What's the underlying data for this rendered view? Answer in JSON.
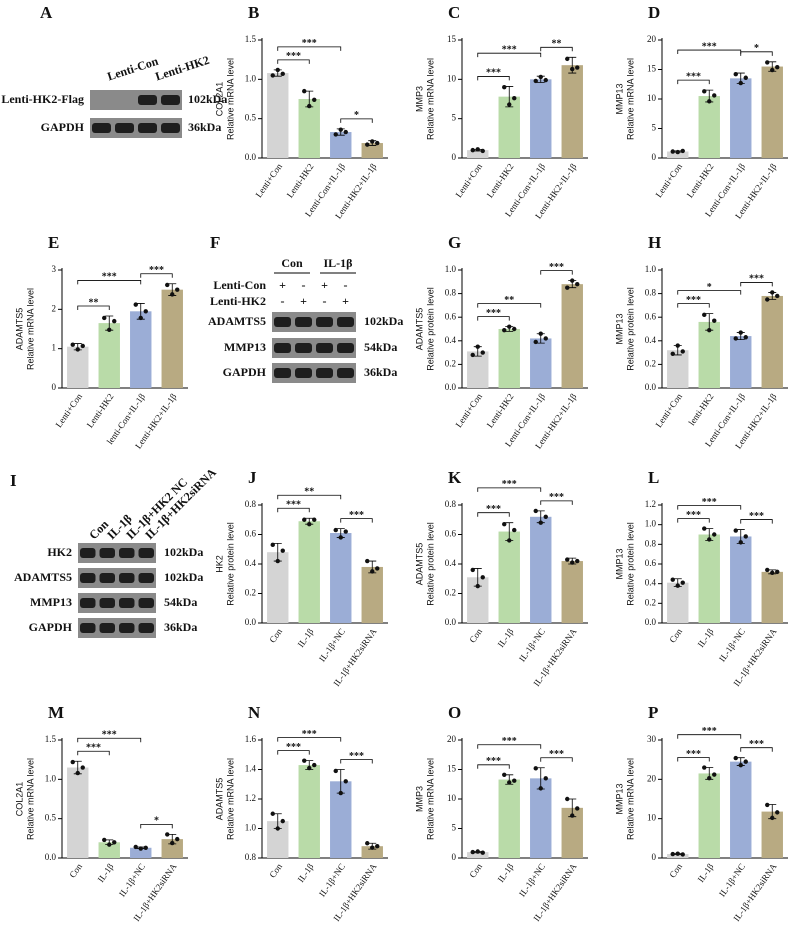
{
  "chart_data": [
    {
      "type": "bar",
      "panel": "B",
      "ylabel": [
        "COL2A1",
        "Relative mRNA level"
      ],
      "categories": [
        "Lenti+Con",
        "Lenti-HK2",
        "Lenti-Con+IL-1β",
        "Lenti-HK2+IL-1β"
      ],
      "colors": [
        "#d4d4d4",
        "#b9dba8",
        "#9badd6",
        "#b8aa82"
      ],
      "values": [
        1.08,
        0.75,
        0.33,
        0.19
      ],
      "errors": [
        0.04,
        0.1,
        0.04,
        0.03
      ],
      "points": [
        [
          1.05,
          1.12,
          1.07
        ],
        [
          0.85,
          0.66,
          0.74
        ],
        [
          0.3,
          0.36,
          0.33
        ],
        [
          0.17,
          0.21,
          0.19
        ]
      ],
      "ylim": [
        0,
        1.5
      ],
      "yticks": [
        {
          "value": 0,
          "label": "0.0"
        },
        0.5,
        {
          "value": 1,
          "label": "1.0"
        },
        1.5
      ],
      "brackets": [
        {
          "from": 0,
          "to": 1,
          "label": "***"
        },
        {
          "from": 0,
          "to": 2,
          "label": "***"
        },
        {
          "from": 2,
          "to": 3,
          "label": "*"
        }
      ]
    },
    {
      "type": "bar",
      "panel": "C",
      "ylabel": [
        "MMP3",
        "Relative mRNA level"
      ],
      "categories": [
        "Lenti+Con",
        "Lenti-HK2",
        "Lenti-Con+IL-1β",
        "Lenti-HK2+IL-1β"
      ],
      "colors": [
        "#d4d4d4",
        "#b9dba8",
        "#9badd6",
        "#b8aa82"
      ],
      "values": [
        1.0,
        7.8,
        10.0,
        11.8
      ],
      "errors": [
        0.1,
        1.3,
        0.4,
        1.0
      ],
      "points": [
        [
          1.0,
          1.1,
          0.9
        ],
        [
          9.0,
          6.8,
          7.6
        ],
        [
          9.8,
          10.3,
          9.9
        ],
        [
          12.6,
          11.3,
          11.5
        ]
      ],
      "ylim": [
        0,
        15
      ],
      "yticks": [
        0,
        5,
        10,
        15
      ],
      "brackets": [
        {
          "from": 0,
          "to": 1,
          "label": "***"
        },
        {
          "from": 0,
          "to": 2,
          "label": "***"
        },
        {
          "from": 2,
          "to": 3,
          "label": "**"
        }
      ]
    },
    {
      "type": "bar",
      "panel": "D",
      "ylabel": [
        "MMP13",
        "Relative mRNA level"
      ],
      "categories": [
        "Lenti+Con",
        "Lenti-HK2",
        "Lenti-Con+IL-1β",
        "Lenti-HK2+IL-1β"
      ],
      "colors": [
        "#d4d4d4",
        "#b9dba8",
        "#9badd6",
        "#b8aa82"
      ],
      "values": [
        1.1,
        10.5,
        13.5,
        15.5
      ],
      "errors": [
        0.1,
        1.0,
        0.9,
        0.8
      ],
      "points": [
        [
          1.1,
          1.0,
          1.2
        ],
        [
          11.3,
          9.6,
          10.6
        ],
        [
          14.2,
          12.7,
          13.6
        ],
        [
          16.2,
          14.9,
          15.4
        ]
      ],
      "ylim": [
        0,
        20
      ],
      "yticks": [
        0,
        5,
        10,
        15,
        20
      ],
      "brackets": [
        {
          "from": 0,
          "to": 1,
          "label": "***"
        },
        {
          "from": 0,
          "to": 2,
          "label": "***"
        },
        {
          "from": 2,
          "to": 3,
          "label": "*"
        }
      ]
    },
    {
      "type": "bar",
      "panel": "E",
      "ylabel": [
        "ADAMTS5",
        "Relative mRNA level"
      ],
      "categories": [
        "Lenti+Con",
        "Lenti-HK2",
        "lenti-Con+IL-1β",
        "Lenti-HK2+IL-1β"
      ],
      "colors": [
        "#d4d4d4",
        "#b9dba8",
        "#9badd6",
        "#b8aa82"
      ],
      "values": [
        1.05,
        1.65,
        1.95,
        2.5
      ],
      "errors": [
        0.08,
        0.18,
        0.2,
        0.15
      ],
      "points": [
        [
          1.1,
          0.98,
          1.07
        ],
        [
          1.78,
          1.48,
          1.7
        ],
        [
          2.12,
          1.78,
          1.95
        ],
        [
          2.62,
          2.38,
          2.5
        ]
      ],
      "ylim": [
        0,
        3
      ],
      "yticks": [
        0,
        1,
        2,
        3
      ],
      "brackets": [
        {
          "from": 0,
          "to": 1,
          "label": "**"
        },
        {
          "from": 0,
          "to": 2,
          "label": "***"
        },
        {
          "from": 2,
          "to": 3,
          "label": "***"
        }
      ]
    },
    {
      "type": "bar",
      "panel": "G",
      "ylabel": [
        "ADAMTS5",
        "Relative protein level"
      ],
      "categories": [
        "Lenti+Con",
        "Lenti-HK2",
        "Lenti-Con+IL-1β",
        "Lenti-HK2+IL-1β"
      ],
      "colors": [
        "#d4d4d4",
        "#b9dba8",
        "#9badd6",
        "#b8aa82"
      ],
      "values": [
        0.31,
        0.5,
        0.42,
        0.88
      ],
      "errors": [
        0.04,
        0.02,
        0.04,
        0.03
      ],
      "points": [
        [
          0.28,
          0.35,
          0.3
        ],
        [
          0.49,
          0.52,
          0.5
        ],
        [
          0.39,
          0.46,
          0.42
        ],
        [
          0.85,
          0.91,
          0.88
        ]
      ],
      "ylim": [
        0,
        1
      ],
      "yticks": [
        {
          "value": 0,
          "label": "0.0"
        },
        0.2,
        0.4,
        0.6,
        0.8,
        {
          "value": 1,
          "label": "1.0"
        }
      ],
      "brackets": [
        {
          "from": 0,
          "to": 1,
          "label": "***"
        },
        {
          "from": 0,
          "to": 2,
          "label": "**"
        },
        {
          "from": 2,
          "to": 3,
          "label": "***"
        }
      ]
    },
    {
      "type": "bar",
      "panel": "H",
      "ylabel": [
        "MMP13",
        "Relative protein level"
      ],
      "categories": [
        "Lenti+Con",
        "lenti-HK2",
        "Lenti-Con+IL-1β",
        "Lenti-HK2+IL-1β"
      ],
      "colors": [
        "#d4d4d4",
        "#b9dba8",
        "#9badd6",
        "#b8aa82"
      ],
      "values": [
        0.32,
        0.56,
        0.44,
        0.78
      ],
      "errors": [
        0.04,
        0.07,
        0.03,
        0.03
      ],
      "points": [
        [
          0.29,
          0.36,
          0.31
        ],
        [
          0.62,
          0.49,
          0.57
        ],
        [
          0.42,
          0.47,
          0.43
        ],
        [
          0.75,
          0.81,
          0.78
        ]
      ],
      "ylim": [
        0,
        1
      ],
      "yticks": [
        {
          "value": 0,
          "label": "0.0"
        },
        0.2,
        0.4,
        0.6,
        0.8,
        {
          "value": 1,
          "label": "1.0"
        }
      ],
      "brackets": [
        {
          "from": 0,
          "to": 1,
          "label": "***"
        },
        {
          "from": 0,
          "to": 2,
          "label": "*"
        },
        {
          "from": 2,
          "to": 3,
          "label": "***"
        }
      ]
    },
    {
      "type": "bar",
      "panel": "J",
      "ylabel": [
        "HK2",
        "Relative protein level"
      ],
      "categories": [
        "Con",
        "IL-1β",
        "IL-1β+NC",
        "IL-1β+HK2siRNA"
      ],
      "colors": [
        "#d4d4d4",
        "#b9dba8",
        "#9badd6",
        "#b8aa82"
      ],
      "values": [
        0.48,
        0.69,
        0.61,
        0.38
      ],
      "errors": [
        0.06,
        0.02,
        0.03,
        0.04
      ],
      "points": [
        [
          0.53,
          0.42,
          0.49
        ],
        [
          0.7,
          0.67,
          0.7
        ],
        [
          0.63,
          0.58,
          0.62
        ],
        [
          0.42,
          0.35,
          0.37
        ]
      ],
      "ylim": [
        0,
        0.8
      ],
      "yticks": [
        {
          "value": 0,
          "label": "0.0"
        },
        0.2,
        0.4,
        0.6,
        0.8
      ],
      "brackets": [
        {
          "from": 0,
          "to": 1,
          "label": "***"
        },
        {
          "from": 0,
          "to": 2,
          "label": "**"
        },
        {
          "from": 2,
          "to": 3,
          "label": "***"
        }
      ]
    },
    {
      "type": "bar",
      "panel": "K",
      "ylabel": [
        "ADAMTS5",
        "Relative protein level"
      ],
      "categories": [
        "Con",
        "IL-1β",
        "IL-1β+NC",
        "IL-1β+HK2siRNA"
      ],
      "colors": [
        "#d4d4d4",
        "#b9dba8",
        "#9badd6",
        "#b8aa82"
      ],
      "values": [
        0.31,
        0.62,
        0.72,
        0.42
      ],
      "errors": [
        0.06,
        0.06,
        0.04,
        0.02
      ],
      "points": [
        [
          0.36,
          0.25,
          0.31
        ],
        [
          0.67,
          0.56,
          0.63
        ],
        [
          0.76,
          0.68,
          0.72
        ],
        [
          0.43,
          0.41,
          0.42
        ]
      ],
      "ylim": [
        0,
        0.8
      ],
      "yticks": [
        {
          "value": 0,
          "label": "0.0"
        },
        0.2,
        0.4,
        0.6,
        0.8
      ],
      "brackets": [
        {
          "from": 0,
          "to": 1,
          "label": "***"
        },
        {
          "from": 0,
          "to": 2,
          "label": "***"
        },
        {
          "from": 2,
          "to": 3,
          "label": "***"
        }
      ]
    },
    {
      "type": "bar",
      "panel": "L",
      "ylabel": [
        "MMP13",
        "Relative protein level"
      ],
      "categories": [
        "Con",
        "IL-1β",
        "IL-1β+NC",
        "IL-1β+HK2siRNA"
      ],
      "colors": [
        "#d4d4d4",
        "#b9dba8",
        "#9badd6",
        "#b8aa82"
      ],
      "values": [
        0.41,
        0.9,
        0.88,
        0.52
      ],
      "errors": [
        0.04,
        0.06,
        0.07,
        0.02
      ],
      "points": [
        [
          0.44,
          0.38,
          0.41
        ],
        [
          0.96,
          0.85,
          0.9
        ],
        [
          0.94,
          0.82,
          0.88
        ],
        [
          0.54,
          0.51,
          0.52
        ]
      ],
      "ylim": [
        0,
        1.2
      ],
      "yticks": [
        {
          "value": 0,
          "label": "0.0"
        },
        0.2,
        0.4,
        0.6,
        0.8,
        {
          "value": 1,
          "label": "1.0"
        },
        1.2
      ],
      "brackets": [
        {
          "from": 0,
          "to": 1,
          "label": "***"
        },
        {
          "from": 0,
          "to": 2,
          "label": "***"
        },
        {
          "from": 2,
          "to": 3,
          "label": "***"
        }
      ]
    },
    {
      "type": "bar",
      "panel": "M",
      "ylabel": [
        "COL2A1",
        "Relative mRNA level"
      ],
      "categories": [
        "Con",
        "IL-1β",
        "IL-1β+NC",
        "IL-1β+HK2siRNA"
      ],
      "colors": [
        "#d4d4d4",
        "#b9dba8",
        "#9badd6",
        "#b8aa82"
      ],
      "values": [
        1.15,
        0.2,
        0.13,
        0.24
      ],
      "errors": [
        0.08,
        0.03,
        0.01,
        0.06
      ],
      "points": [
        [
          1.22,
          1.08,
          1.15
        ],
        [
          0.23,
          0.17,
          0.2
        ],
        [
          0.14,
          0.12,
          0.13
        ],
        [
          0.3,
          0.19,
          0.24
        ]
      ],
      "ylim": [
        0,
        1.5
      ],
      "yticks": [
        {
          "value": 0,
          "label": "0.0"
        },
        0.5,
        {
          "value": 1,
          "label": "1.0"
        },
        1.5
      ],
      "brackets": [
        {
          "from": 0,
          "to": 1,
          "label": "***"
        },
        {
          "from": 0,
          "to": 2,
          "label": "***"
        },
        {
          "from": 2,
          "to": 3,
          "label": "*"
        }
      ]
    },
    {
      "type": "bar",
      "panel": "N",
      "ylabel": [
        "ADAMTS5",
        "Relative mRNA level"
      ],
      "categories": [
        "Con",
        "IL-1β",
        "IL-1β+NC",
        "IL-1β+HK2siRNA"
      ],
      "colors": [
        "#d4d4d4",
        "#b9dba8",
        "#9badd6",
        "#b8aa82"
      ],
      "values": [
        1.05,
        1.43,
        1.32,
        0.88
      ],
      "errors": [
        0.05,
        0.03,
        0.08,
        0.02
      ],
      "points": [
        [
          1.1,
          1.0,
          1.05
        ],
        [
          1.46,
          1.41,
          1.43
        ],
        [
          1.39,
          1.24,
          1.32
        ],
        [
          0.9,
          0.87,
          0.88
        ]
      ],
      "ylim": [
        0.8,
        1.6
      ],
      "yticks": [
        0.8,
        {
          "value": 1,
          "label": "1.0"
        },
        1.2,
        1.4,
        1.6
      ],
      "brackets": [
        {
          "from": 0,
          "to": 1,
          "label": "***"
        },
        {
          "from": 0,
          "to": 2,
          "label": "***"
        },
        {
          "from": 2,
          "to": 3,
          "label": "***"
        }
      ]
    },
    {
      "type": "bar",
      "panel": "O",
      "ylabel": [
        "MMP3",
        "Relative mRNA level"
      ],
      "categories": [
        "Con",
        "IL-1β",
        "IL-1β+NC",
        "IL-1β+HK2siRNA"
      ],
      "colors": [
        "#d4d4d4",
        "#b9dba8",
        "#9badd6",
        "#b8aa82"
      ],
      "values": [
        1.0,
        13.3,
        13.5,
        8.5
      ],
      "errors": [
        0.1,
        0.8,
        1.8,
        1.5
      ],
      "points": [
        [
          1.0,
          1.1,
          0.9
        ],
        [
          14.1,
          12.8,
          13.1
        ],
        [
          15.2,
          11.8,
          13.5
        ],
        [
          10.0,
          7.2,
          8.4
        ]
      ],
      "ylim": [
        0,
        20
      ],
      "yticks": [
        0,
        5,
        10,
        15,
        20
      ],
      "brackets": [
        {
          "from": 0,
          "to": 1,
          "label": "***"
        },
        {
          "from": 0,
          "to": 2,
          "label": "***"
        },
        {
          "from": 2,
          "to": 3,
          "label": "***"
        }
      ]
    },
    {
      "type": "bar",
      "panel": "P",
      "ylabel": [
        "MMP13",
        "Relative mRNA level"
      ],
      "categories": [
        "Con",
        "IL-1β",
        "IL-1β+NC",
        "IL-1β+HK2siRNA"
      ],
      "colors": [
        "#d4d4d4",
        "#b9dba8",
        "#9badd6",
        "#b8aa82"
      ],
      "values": [
        1.0,
        21.5,
        24.5,
        11.8
      ],
      "errors": [
        0.1,
        1.5,
        1.0,
        1.8
      ],
      "points": [
        [
          1.0,
          1.1,
          0.9
        ],
        [
          23.0,
          20.3,
          21.2
        ],
        [
          25.4,
          23.6,
          24.5
        ],
        [
          13.5,
          10.2,
          11.6
        ]
      ],
      "ylim": [
        0,
        30
      ],
      "yticks": [
        0,
        10,
        20,
        30
      ],
      "brackets": [
        {
          "from": 0,
          "to": 1,
          "label": "***"
        },
        {
          "from": 0,
          "to": 2,
          "label": "***"
        },
        {
          "from": 2,
          "to": 3,
          "label": "***"
        }
      ]
    }
  ],
  "blots": [
    {
      "panel": "A",
      "column_labels": [
        "Lenti-Con",
        "Lenti-HK2"
      ],
      "rows": [
        {
          "protein": "Lenti-HK2-Flag",
          "size": "102kDa"
        },
        {
          "protein": "GAPDH",
          "size": "36kDa"
        }
      ]
    },
    {
      "panel": "F",
      "groups": [
        "Con",
        "IL-1β"
      ],
      "sign_rows": [
        {
          "label": "Lenti-Con",
          "signs": [
            "+",
            "-",
            "+",
            "-"
          ]
        },
        {
          "label": "Lenti-HK2",
          "signs": [
            "-",
            "+",
            "-",
            "+"
          ]
        }
      ],
      "rows": [
        {
          "protein": "ADAMTS5",
          "size": "102kDa"
        },
        {
          "protein": "MMP13",
          "size": "54kDa"
        },
        {
          "protein": "GAPDH",
          "size": "36kDa"
        }
      ]
    },
    {
      "panel": "I",
      "column_labels": [
        "Con",
        "IL-1β",
        "IL-1β+HK2 NC",
        "IL-1β+HK2siRNA"
      ],
      "rows": [
        {
          "protein": "HK2",
          "size": "102kDa"
        },
        {
          "protein": "ADAMTS5",
          "size": "102kDa"
        },
        {
          "protein": "MMP13",
          "size": "54kDa"
        },
        {
          "protein": "GAPDH",
          "size": "36kDa"
        }
      ]
    }
  ]
}
